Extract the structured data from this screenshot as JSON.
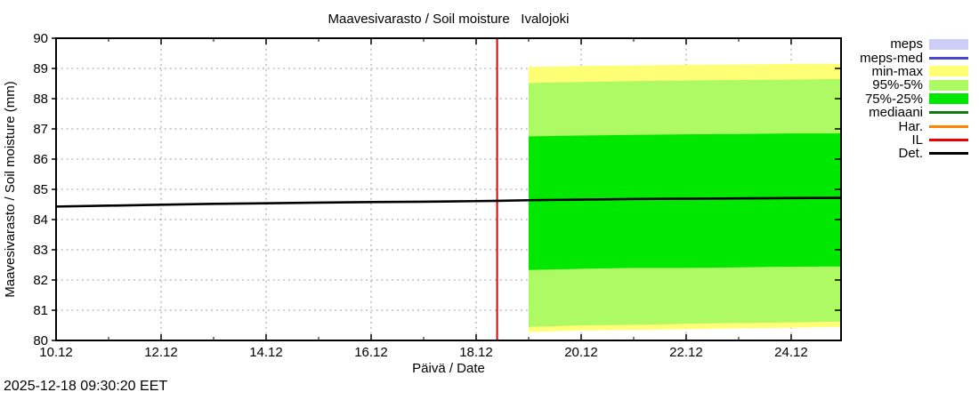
{
  "title": "Maavesivarasto / Soil moisture   Ivalojoki",
  "footer_timestamp": "2025-12-18 09:30:20 EET",
  "legend": {
    "items": [
      {
        "label": "meps",
        "type": "band",
        "color": "#cdcdf6"
      },
      {
        "label": "meps-med",
        "type": "line",
        "color": "#4848cf"
      },
      {
        "label": "min-max",
        "type": "band",
        "color": "#ffff75"
      },
      {
        "label": "95%-5%",
        "type": "band",
        "color": "#adfa64"
      },
      {
        "label": "75%-25%",
        "type": "band",
        "color": "#00e800"
      },
      {
        "label": "mediaani",
        "type": "line",
        "color": "#117a11"
      },
      {
        "label": "Har.",
        "type": "line",
        "color": "#ff8400"
      },
      {
        "label": "IL",
        "type": "line",
        "color": "#ea0000"
      },
      {
        "label": "Det.",
        "type": "line",
        "color": "#000000"
      }
    ]
  },
  "chart_data": {
    "type": "area",
    "title": "Maavesivarasto / Soil moisture   Ivalojoki",
    "xlabel": "Päivä / Date",
    "ylabel": "Maavesivarasto / Soil moisture (mm)",
    "xlim": [
      10,
      24.95
    ],
    "ylim": [
      80,
      90
    ],
    "grid": true,
    "grid_color": "#9b9b9b",
    "xticks": [
      {
        "v": 10,
        "label": "10.12"
      },
      {
        "v": 12,
        "label": "12.12"
      },
      {
        "v": 14,
        "label": "14.12"
      },
      {
        "v": 16,
        "label": "16.12"
      },
      {
        "v": 18,
        "label": "18.12"
      },
      {
        "v": 20,
        "label": "20.12"
      },
      {
        "v": 22,
        "label": "22.12"
      },
      {
        "v": 24,
        "label": "24.12"
      }
    ],
    "xminor": [
      11,
      13,
      15,
      17,
      19,
      21,
      23
    ],
    "yticks": [
      {
        "v": 80,
        "label": "80"
      },
      {
        "v": 81,
        "label": "81"
      },
      {
        "v": 82,
        "label": "82"
      },
      {
        "v": 83,
        "label": "83"
      },
      {
        "v": 84,
        "label": "84"
      },
      {
        "v": 85,
        "label": "85"
      },
      {
        "v": 86,
        "label": "86"
      },
      {
        "v": 87,
        "label": "87"
      },
      {
        "v": 88,
        "label": "88"
      },
      {
        "v": 89,
        "label": "89"
      },
      {
        "v": 90,
        "label": "90"
      }
    ],
    "vgrid": [
      12,
      14,
      16,
      18,
      20,
      22,
      24
    ],
    "hgrid": [
      81,
      82,
      83,
      84,
      85,
      86,
      87,
      88,
      89
    ],
    "bands": [
      {
        "name": "min-max",
        "color": "#ffff75",
        "x": [
          19.0,
          20.0,
          21.0,
          22.0,
          23.0,
          24.0,
          24.95
        ],
        "top": [
          89.05,
          89.08,
          89.1,
          89.12,
          89.13,
          89.15,
          89.15
        ],
        "bottom": [
          80.28,
          80.33,
          80.35,
          80.37,
          80.4,
          80.42,
          80.45
        ]
      },
      {
        "name": "95%-5%",
        "color": "#adfa64",
        "x": [
          19.0,
          20.0,
          21.0,
          22.0,
          23.0,
          24.0,
          24.95
        ],
        "top": [
          88.52,
          88.55,
          88.58,
          88.6,
          88.62,
          88.63,
          88.65
        ],
        "bottom": [
          80.45,
          80.5,
          80.52,
          80.55,
          80.58,
          80.6,
          80.62
        ]
      },
      {
        "name": "75%-25%",
        "color": "#00e800",
        "x": [
          19.0,
          20.0,
          21.0,
          22.0,
          23.0,
          24.0,
          24.95
        ],
        "top": [
          86.75,
          86.78,
          86.8,
          86.82,
          86.83,
          86.85,
          86.85
        ],
        "bottom": [
          82.33,
          82.37,
          82.4,
          82.4,
          82.42,
          82.44,
          82.45
        ]
      }
    ],
    "lines": [
      {
        "name": "Det.",
        "color": "#000000",
        "width": 2.6,
        "x": [
          10,
          11,
          12,
          13,
          14,
          15,
          16,
          17,
          18,
          18.4,
          19,
          20,
          21,
          22,
          23,
          24,
          24.95
        ],
        "y": [
          84.43,
          84.46,
          84.49,
          84.52,
          84.54,
          84.56,
          84.58,
          84.59,
          84.61,
          84.62,
          84.64,
          84.66,
          84.68,
          84.69,
          84.7,
          84.71,
          84.72
        ]
      }
    ],
    "vline": {
      "x": 18.4,
      "color": "#dd0000",
      "width": 2
    }
  }
}
